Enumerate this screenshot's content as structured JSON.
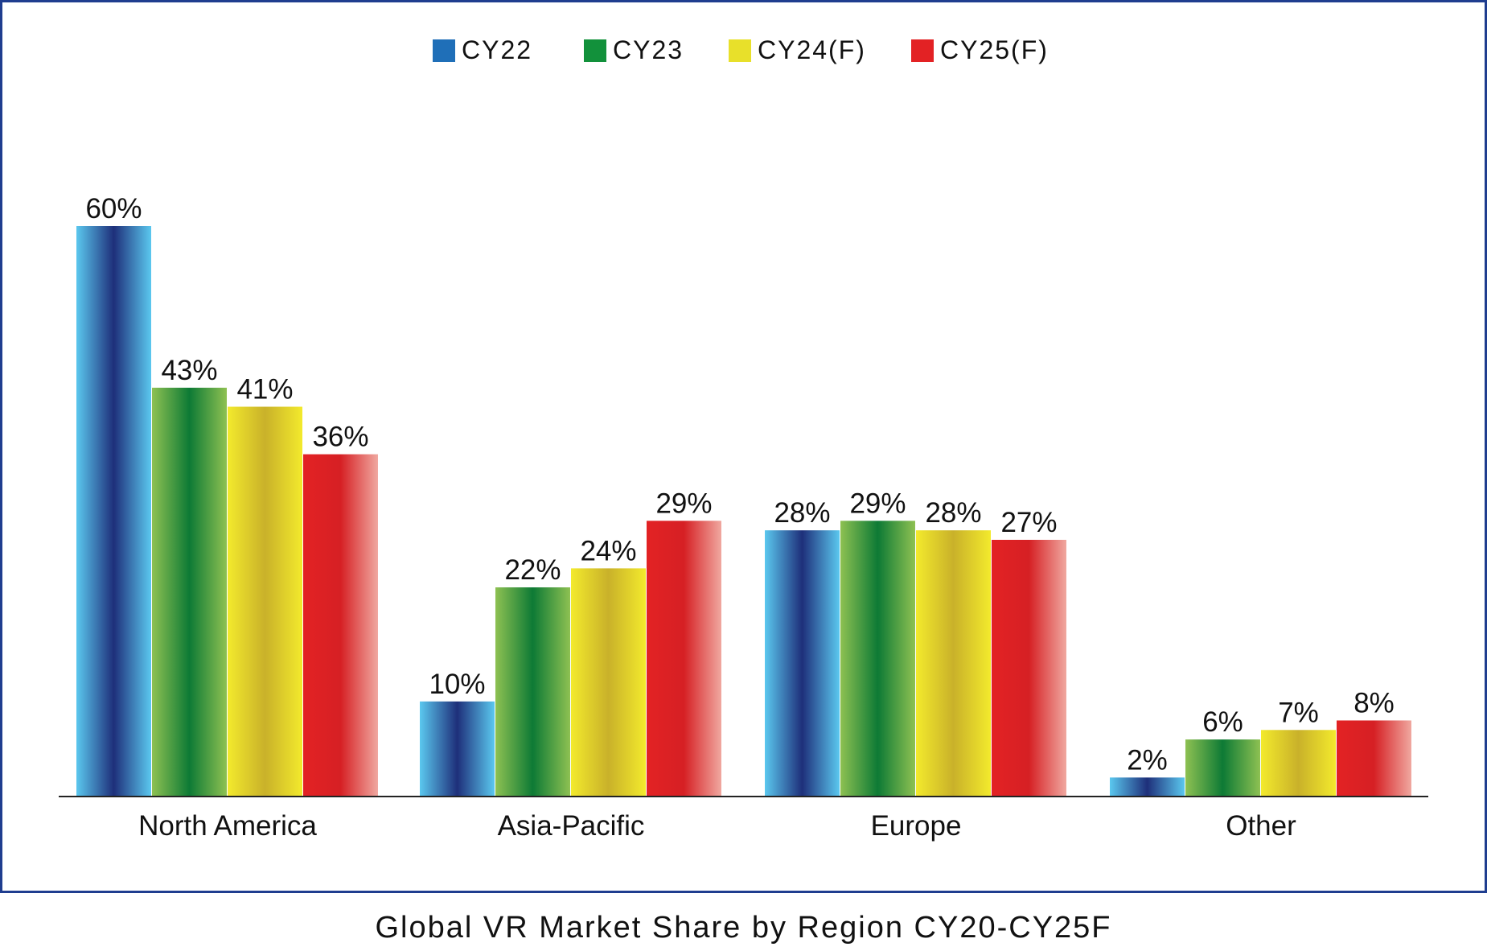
{
  "chart_data": {
    "type": "bar",
    "title": "Global VR Market Share by Region CY20-CY25F",
    "xlabel": "",
    "ylabel": "",
    "ylim": [
      0,
      60
    ],
    "grid": false,
    "legend_position": "top-center",
    "categories": [
      "North America",
      "Asia-Pacific",
      "Europe",
      "Other"
    ],
    "series": [
      {
        "name": "CY22",
        "color": "#1f6fb8",
        "gradient": [
          "#5bc8ef",
          "#1e2f7a",
          "#5bc8ef"
        ],
        "values": [
          60,
          10,
          28,
          2
        ],
        "labels": [
          "60%",
          "10%",
          "28%",
          "2%"
        ]
      },
      {
        "name": "CY23",
        "color": "#12913b",
        "gradient": [
          "#8ec152",
          "#0d7a35",
          "#8ec152"
        ],
        "values": [
          43,
          22,
          29,
          6
        ],
        "labels": [
          "43%",
          "22%",
          "29%",
          "6%"
        ]
      },
      {
        "name": "CY24(F)",
        "color": "#e8e02a",
        "gradient": [
          "#f3ea2c",
          "#c9b12a",
          "#f3ea2c"
        ],
        "values": [
          41,
          24,
          28,
          7
        ],
        "labels": [
          "41%",
          "24%",
          "28%",
          "7%"
        ]
      },
      {
        "name": "CY25(F)",
        "color": "#e32224",
        "gradient": [
          "#e32224",
          "#d62024",
          "#f0a8a0"
        ],
        "values": [
          36,
          29,
          27,
          8
        ],
        "labels": [
          "36%",
          "29%",
          "27%",
          "8%"
        ]
      }
    ]
  }
}
